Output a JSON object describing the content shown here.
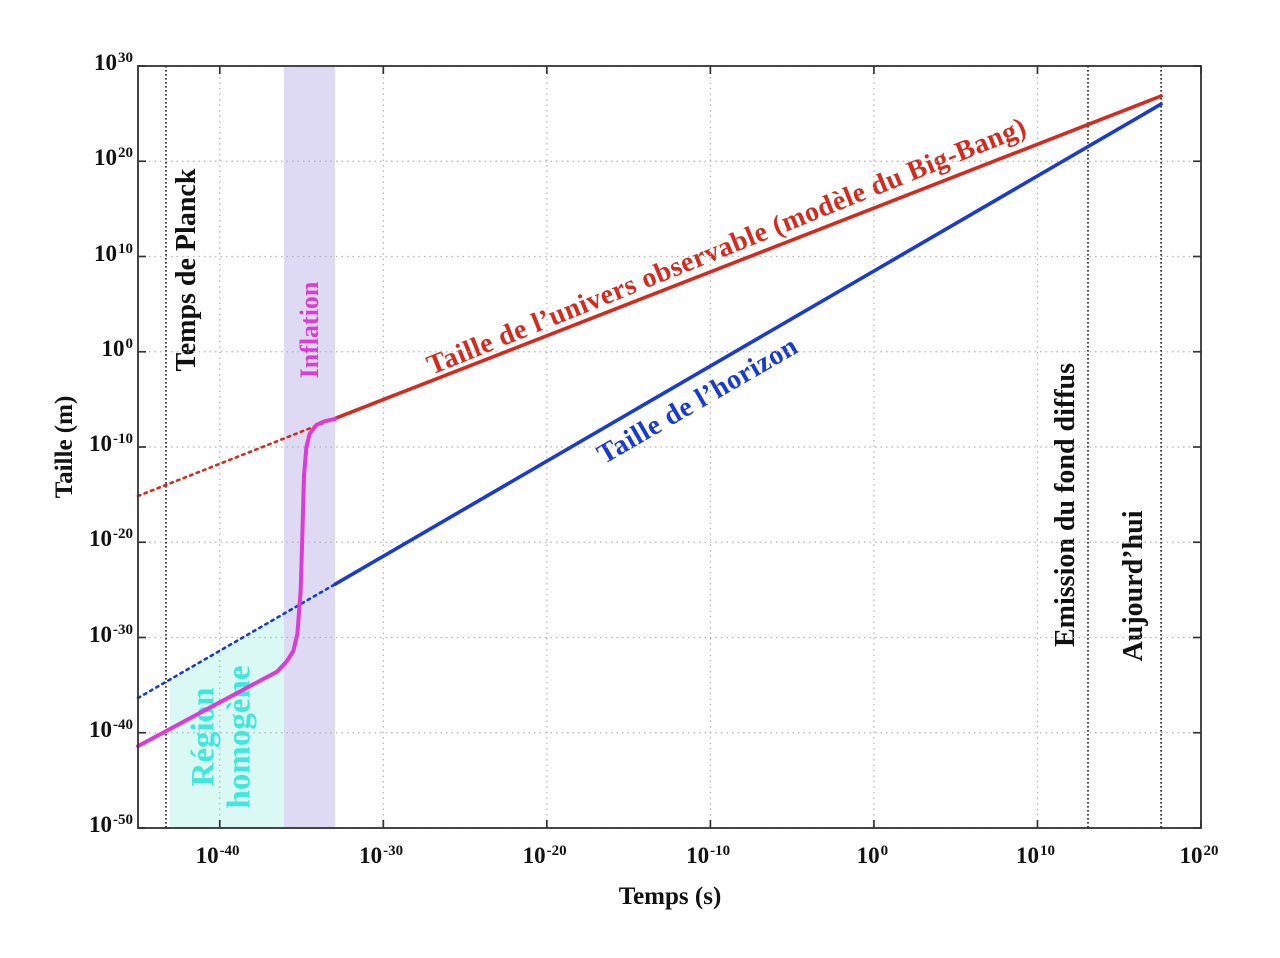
{
  "chart_data": {
    "type": "line",
    "title": "",
    "xlabel": "Temps (s)",
    "ylabel": "Taille (m)",
    "x_axis": {
      "scale": "log",
      "tick_base": "10",
      "exp_min": -45,
      "exp_max": 20,
      "tick_exponents": [
        -40,
        -30,
        -20,
        -10,
        0,
        10,
        20
      ]
    },
    "y_axis": {
      "scale": "log",
      "tick_base": "10",
      "exp_min": -50,
      "exp_max": 30,
      "tick_exponents": [
        30,
        20,
        10,
        0,
        -10,
        -20,
        -30,
        -40,
        -50
      ]
    },
    "grid": true,
    "legend": "labels drawn along curves",
    "series": [
      {
        "name": "taille-univers-observable",
        "label": "Taille de l’univers observable (modèle du Big-Bang)",
        "color": "#d32b20",
        "style": "solid",
        "width": 3.6,
        "points": [
          [
            -32.95,
            -7.0
          ],
          [
            17.56,
            26.85
          ]
        ]
      },
      {
        "name": "taille-univers-observable-extrapolation",
        "color": "#d32b20",
        "style": "dotted",
        "width": 2.6,
        "points": [
          [
            -45,
            -15.14
          ],
          [
            -32.95,
            -7.0
          ]
        ]
      },
      {
        "name": "taille-horizon",
        "label": "Taille de l’horizon",
        "color": "#1b3bce",
        "style": "solid",
        "width": 3.6,
        "points": [
          [
            -32.95,
            -24.4
          ],
          [
            17.56,
            26.0
          ]
        ]
      },
      {
        "name": "taille-horizon-extrapolation",
        "color": "#1b3bce",
        "style": "dotted",
        "width": 2.6,
        "points": [
          [
            -45,
            -36.35
          ],
          [
            -32.95,
            -24.4
          ]
        ]
      },
      {
        "name": "inflation-curve",
        "color": "#de3ad4",
        "style": "solid",
        "width": 4,
        "points": [
          [
            -45,
            -41.4
          ],
          [
            -37.5,
            -34.5
          ],
          [
            -36.5,
            -33.6
          ],
          [
            -35.9,
            -32.5
          ],
          [
            -35.5,
            -31.4
          ],
          [
            -35.25,
            -29.6
          ],
          [
            -35.05,
            -25.0
          ],
          [
            -34.95,
            -19.0
          ],
          [
            -34.85,
            -13.0
          ],
          [
            -34.7,
            -10.0
          ],
          [
            -34.5,
            -8.6
          ],
          [
            -34.1,
            -7.7
          ],
          [
            -33.6,
            -7.3
          ],
          [
            -32.95,
            -7.05
          ]
        ]
      }
    ],
    "regions": [
      {
        "name": "inflation-band",
        "color": "#dedaf4",
        "points": [
          [
            -36.07,
            30
          ],
          [
            -32.95,
            30
          ],
          [
            -32.95,
            -50
          ],
          [
            -36.07,
            -50
          ]
        ]
      },
      {
        "name": "region-homogene",
        "color": "#daf8f4",
        "points": [
          [
            -43.04,
            -50
          ],
          [
            -43.04,
            -34.5
          ],
          [
            -36.07,
            -27.45
          ],
          [
            -36.07,
            -50
          ]
        ]
      }
    ],
    "vlines": [
      {
        "name": "temps-de-planck",
        "t": -43.29
      },
      {
        "name": "emission-fond-diffus",
        "t": 13.09
      },
      {
        "name": "aujourdhui",
        "t": 17.56
      }
    ],
    "annotations": {
      "planck": "Temps de Planck",
      "inflation": "Inflation",
      "emission": "Emission du fond diffus",
      "today": "Aujourd’hui",
      "homogene_line1": "Région",
      "homogene_line2": "homogène",
      "universe_label": "Taille de l’univers observable (modèle du Big-Bang)",
      "horizon_label": "Taille de l’horizon"
    },
    "colors": {
      "universe": "#d32b20",
      "horizon": "#1b3bce",
      "inflation_curve": "#de3ad4",
      "inflation_band": "#dedaf4",
      "homogene_fill": "#daf8f4",
      "homogene_text": "#40e8da",
      "annotation_text": "#111111",
      "grid": "#b3b3b3",
      "event_lines": "#2b2b2b",
      "frame": "#333333",
      "background": "#ffffff"
    }
  }
}
